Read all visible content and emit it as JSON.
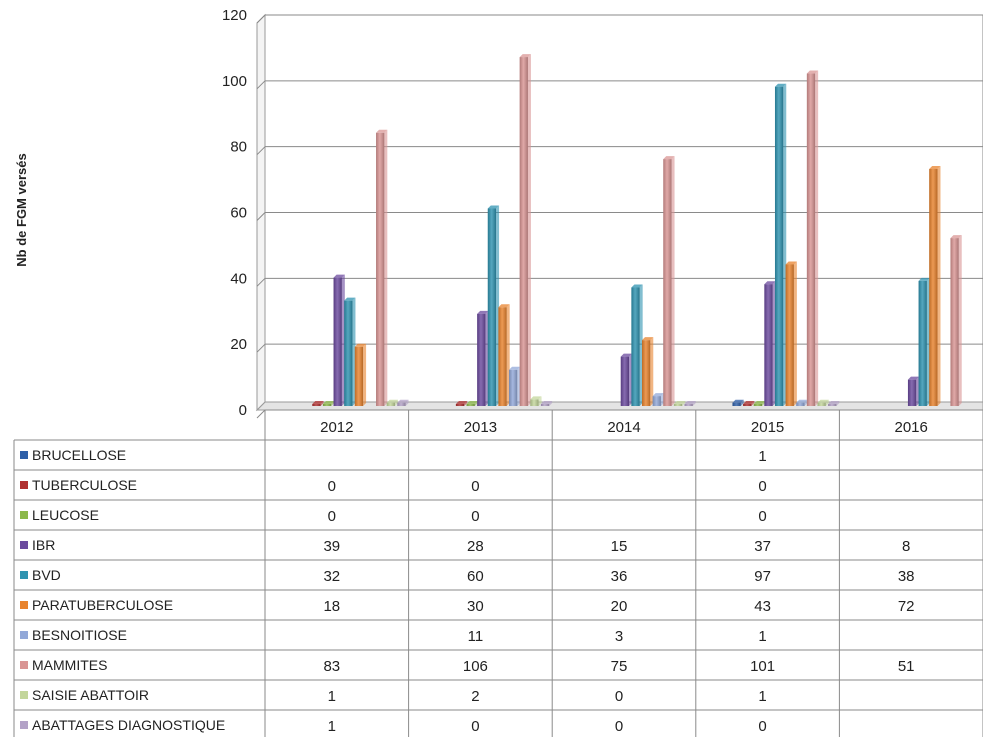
{
  "chart_data": {
    "type": "bar",
    "title": "",
    "xlabel": "",
    "ylabel": "Nb de FGM versés",
    "ylim": [
      0,
      120
    ],
    "yticks": [
      0,
      20,
      40,
      60,
      80,
      100,
      120
    ],
    "grid": true,
    "legend": "data-table",
    "categories": [
      "2012",
      "2013",
      "2014",
      "2015",
      "2016"
    ],
    "series": [
      {
        "name": "BRUCELLOSE",
        "color": "#2e5fa8",
        "values": [
          null,
          null,
          null,
          1,
          null
        ]
      },
      {
        "name": "TUBERCULOSE",
        "color": "#b03030",
        "values": [
          0,
          0,
          null,
          0,
          null
        ]
      },
      {
        "name": "LEUCOSE",
        "color": "#8cb84a",
        "values": [
          0,
          0,
          null,
          0,
          null
        ]
      },
      {
        "name": "IBR",
        "color": "#6b4a9e",
        "values": [
          39,
          28,
          15,
          37,
          8
        ]
      },
      {
        "name": "BVD",
        "color": "#2f93b0",
        "values": [
          32,
          60,
          36,
          97,
          38
        ]
      },
      {
        "name": "PARATUBERCULOSE",
        "color": "#e8832e",
        "values": [
          18,
          30,
          20,
          43,
          72
        ]
      },
      {
        "name": "BESNOITIOSE",
        "color": "#92a8d8",
        "values": [
          null,
          11,
          3,
          1,
          null
        ]
      },
      {
        "name": "MAMMITES",
        "color": "#d99594",
        "values": [
          83,
          106,
          75,
          101,
          51
        ]
      },
      {
        "name": "SAISIE ABATTOIR",
        "color": "#c3d69b",
        "values": [
          1,
          2,
          0,
          1,
          null
        ]
      },
      {
        "name": "ABATTAGES DIAGNOSTIQUE",
        "color": "#b3a2c7",
        "values": [
          1,
          0,
          0,
          0,
          null
        ]
      }
    ]
  }
}
